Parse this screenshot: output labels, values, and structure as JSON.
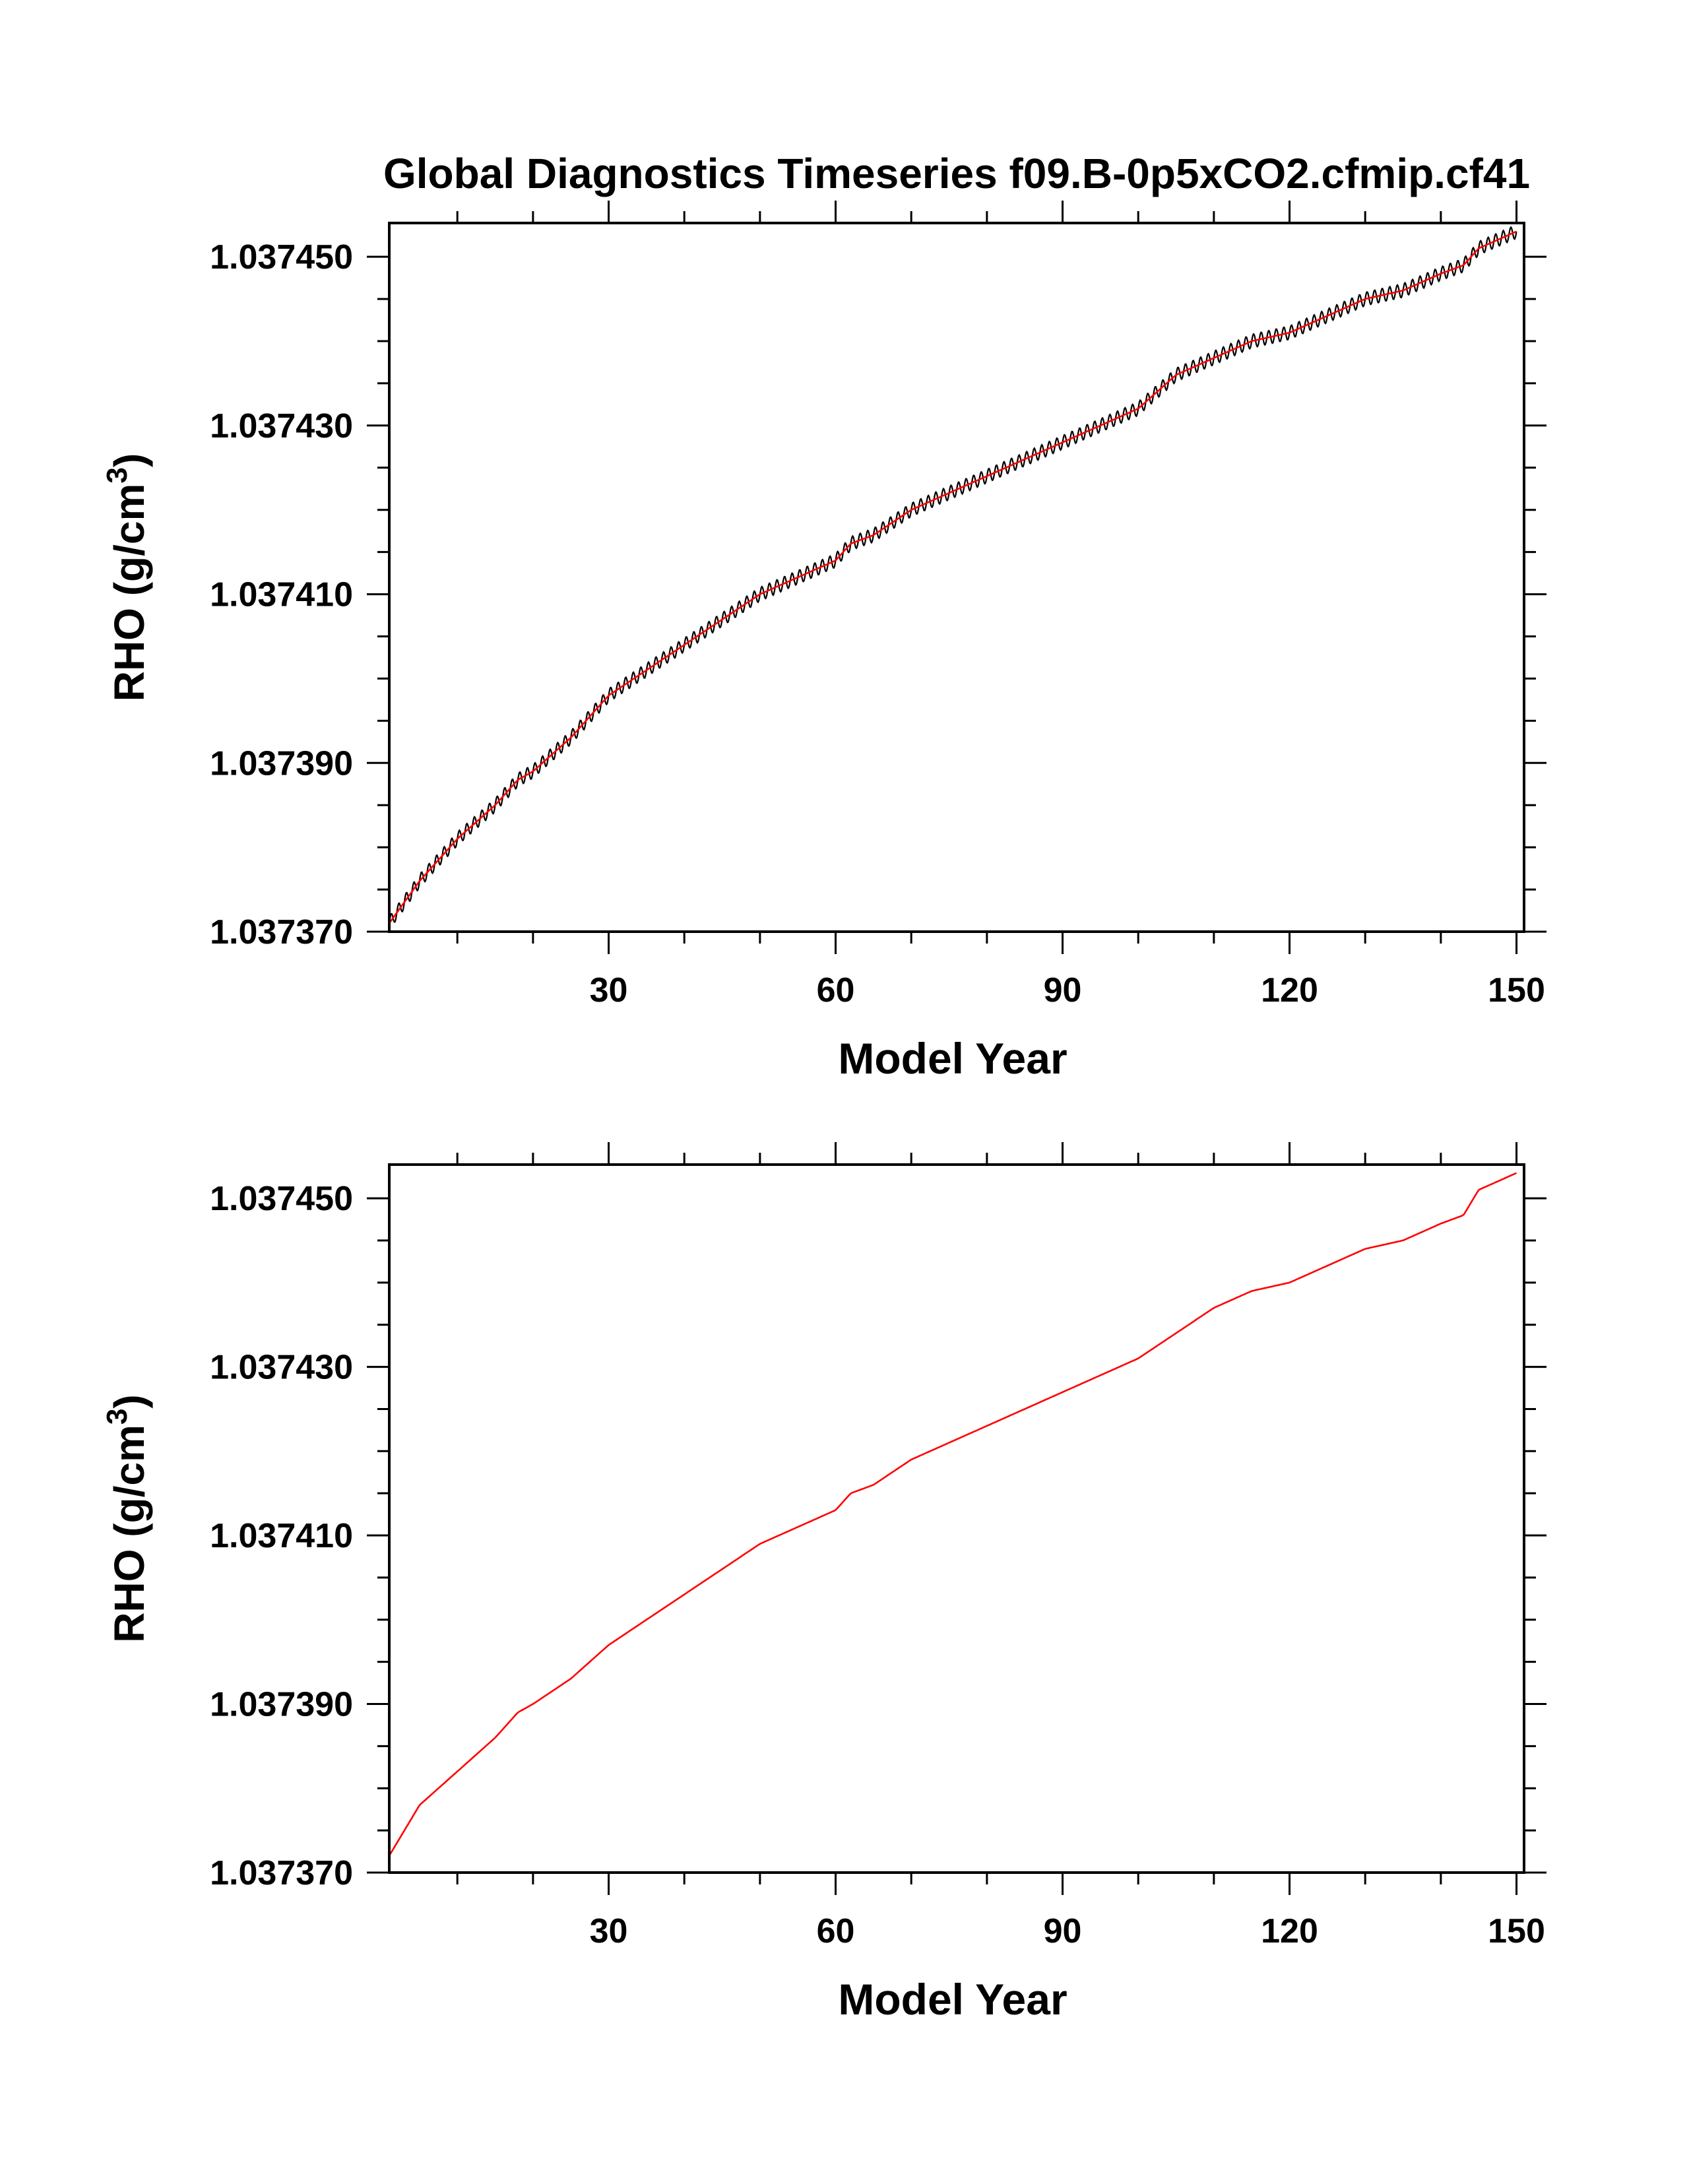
{
  "title": "Global Diagnostics Timeseries f09.B-0p5xCO2.cfmip.cf41",
  "colors": {
    "smoothed": "#ff0000",
    "raw": "#000000",
    "axes": "#000000"
  },
  "chart_data": [
    {
      "type": "line",
      "title": "Global Diagnostics Timeseries f09.B-0p5xCO2.cfmip.cf41",
      "xlabel": "Model Year",
      "ylabel": "RHO (g/cm",
      "ylabel_superscript": "3",
      "ylabel_suffix": ")",
      "xlim": [
        1,
        151
      ],
      "ylim": [
        1.03737,
        1.037454
      ],
      "xticks": [
        30,
        60,
        90,
        120,
        150
      ],
      "xtick_labels": [
        "30",
        "60",
        "90",
        "120",
        "150"
      ],
      "yticks": [
        1.03737,
        1.03739,
        1.03741,
        1.03743,
        1.03745
      ],
      "ytick_labels": [
        "1.037370",
        "1.037390",
        "1.037410",
        "1.037430",
        "1.037450"
      ],
      "x": [
        1,
        5,
        10,
        15,
        18,
        20,
        25,
        30,
        35,
        40,
        45,
        50,
        55,
        60,
        62,
        65,
        70,
        75,
        80,
        85,
        90,
        95,
        100,
        105,
        110,
        115,
        120,
        125,
        130,
        135,
        140,
        143,
        145,
        150
      ],
      "series": [
        {
          "values": [
            1.037371,
            1.037376,
            1.037381,
            1.037385,
            1.037388,
            1.037389,
            1.037393,
            1.037398,
            1.037401,
            1.037404,
            1.037407,
            1.03741,
            1.037412,
            1.037414,
            1.037416,
            1.037417,
            1.03742,
            1.037422,
            1.037424,
            1.037426,
            1.037428,
            1.03743,
            1.037432,
            1.037436,
            1.037438,
            1.03744,
            1.037441,
            1.037443,
            1.037445,
            1.037446,
            1.037448,
            1.037449,
            1.037451,
            1.037453
          ],
          "style": "smoothed",
          "seasonal_amplitude": 8e-07
        }
      ]
    },
    {
      "type": "line",
      "xlabel": "Model Year",
      "ylabel": "RHO (g/cm",
      "ylabel_superscript": "3",
      "ylabel_suffix": ")",
      "xlim": [
        1,
        151
      ],
      "ylim": [
        1.03737,
        1.037454
      ],
      "xticks": [
        30,
        60,
        90,
        120,
        150
      ],
      "xtick_labels": [
        "30",
        "60",
        "90",
        "120",
        "150"
      ],
      "yticks": [
        1.03737,
        1.03739,
        1.03741,
        1.03743,
        1.03745
      ],
      "ytick_labels": [
        "1.037370",
        "1.037390",
        "1.037410",
        "1.037430",
        "1.037450"
      ],
      "x": [
        1,
        5,
        10,
        15,
        18,
        20,
        25,
        30,
        35,
        40,
        45,
        50,
        55,
        60,
        62,
        65,
        70,
        75,
        80,
        85,
        90,
        95,
        100,
        105,
        110,
        115,
        120,
        125,
        130,
        135,
        140,
        143,
        145,
        150
      ],
      "series": [
        {
          "values": [
            1.037372,
            1.037378,
            1.037382,
            1.037386,
            1.037389,
            1.03739,
            1.037393,
            1.037397,
            1.0374,
            1.037403,
            1.037406,
            1.037409,
            1.037411,
            1.037413,
            1.037415,
            1.037416,
            1.037419,
            1.037421,
            1.037423,
            1.037425,
            1.037427,
            1.037429,
            1.037431,
            1.037434,
            1.037437,
            1.037439,
            1.03744,
            1.037442,
            1.037444,
            1.037445,
            1.037447,
            1.037448,
            1.037451,
            1.037453
          ],
          "style": "smoothed"
        }
      ]
    }
  ]
}
